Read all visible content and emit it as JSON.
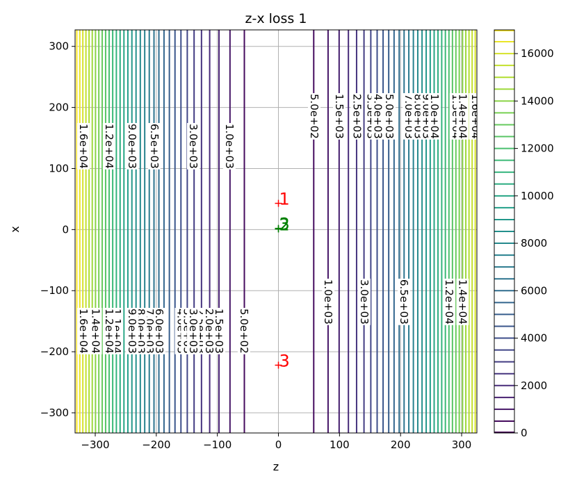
{
  "chart_data": {
    "type": "contour",
    "title": "z-x loss 1",
    "xlabel": "z",
    "ylabel": "x",
    "xlim": [
      -333,
      325
    ],
    "ylim": [
      -333,
      327
    ],
    "xticks": [
      -300,
      -200,
      -100,
      0,
      100,
      200,
      300
    ],
    "xtick_labels": [
      "−300",
      "−200",
      "−100",
      "0",
      "100",
      "200",
      "300"
    ],
    "yticks": [
      -300,
      -200,
      -100,
      0,
      100,
      200,
      300
    ],
    "ytick_labels": [
      "−300",
      "−200",
      "−100",
      "0",
      "100",
      "200",
      "300"
    ],
    "grid": true,
    "colormap": "viridis",
    "colorbar": {
      "min": 0,
      "max": 17000,
      "step": 500,
      "ticks": [
        0,
        2000,
        4000,
        6000,
        8000,
        10000,
        12000,
        14000,
        16000
      ],
      "tick_labels": [
        "0",
        "2000",
        "4000",
        "6000",
        "8000",
        "10000",
        "12000",
        "14000",
        "16000"
      ]
    },
    "contour_model": {
      "form": "a*(z - z0)^2",
      "a": 0.155,
      "z0": 1
    },
    "contour_labels_left_lower": [
      {
        "text": "5.0e+02",
        "z": -57
      },
      {
        "text": "1.5e+03",
        "z": -98
      },
      {
        "text": "2.5e+03",
        "z": -128
      },
      {
        "text": "2.0e+03",
        "z": -114
      },
      {
        "text": "4.0e+03",
        "z": -160
      },
      {
        "text": "3.5e+03",
        "z": -150
      },
      {
        "text": "3.0e+03",
        "z": -140
      },
      {
        "text": "6.0e+03",
        "z": -196
      },
      {
        "text": "7.0e+03",
        "z": -212
      },
      {
        "text": "8.0e+03",
        "z": -226
      },
      {
        "text": "9.0e+03",
        "z": -240
      },
      {
        "text": "1.1e+04",
        "z": -265
      },
      {
        "text": "1.2e+04",
        "z": -278
      },
      {
        "text": "1.4e+04",
        "z": -300
      },
      {
        "text": "1.6e+04",
        "z": -320
      }
    ],
    "contour_labels_left_upper": [
      {
        "text": "1.0e+03",
        "z": -81
      },
      {
        "text": "3.0e+03",
        "z": -140
      },
      {
        "text": "6.5e+03",
        "z": -204
      },
      {
        "text": "9.0e+03",
        "z": -240
      },
      {
        "text": "1.2e+04",
        "z": -278
      },
      {
        "text": "1.6e+04",
        "z": -320
      }
    ],
    "contour_labels_right_upper": [
      {
        "text": "5.0e+02",
        "z": 58
      },
      {
        "text": "1.5e+03",
        "z": 99
      },
      {
        "text": "2.5e+03",
        "z": 128
      },
      {
        "text": "3.5e+03",
        "z": 151
      },
      {
        "text": "4.0e+03",
        "z": 162
      },
      {
        "text": "5.0e+03",
        "z": 181
      },
      {
        "text": "7.0e+03",
        "z": 213
      },
      {
        "text": "8.0e+03",
        "z": 228
      },
      {
        "text": "9.0e+03",
        "z": 242
      },
      {
        "text": "1.0e+04",
        "z": 255
      },
      {
        "text": "1.3e+04",
        "z": 290
      },
      {
        "text": "1.4e+04",
        "z": 301
      },
      {
        "text": "1.6e+04",
        "z": 322
      }
    ],
    "contour_labels_right_lower": [
      {
        "text": "1.0e+03",
        "z": 81
      },
      {
        "text": "3.0e+03",
        "z": 140
      },
      {
        "text": "6.5e+03",
        "z": 205
      },
      {
        "text": "1.2e+04",
        "z": 279
      },
      {
        "text": "1.4e+04",
        "z": 301
      }
    ],
    "markers": [
      {
        "label": "1",
        "z": 0,
        "x": 43,
        "color": "#ff0000"
      },
      {
        "label": "2",
        "z": 0,
        "x": 1,
        "color": "#008000"
      },
      {
        "label": "3",
        "z": 0,
        "x": 2,
        "color": "#008000"
      },
      {
        "label": "3",
        "z": 0,
        "x": -222,
        "color": "#ff0000"
      }
    ]
  }
}
